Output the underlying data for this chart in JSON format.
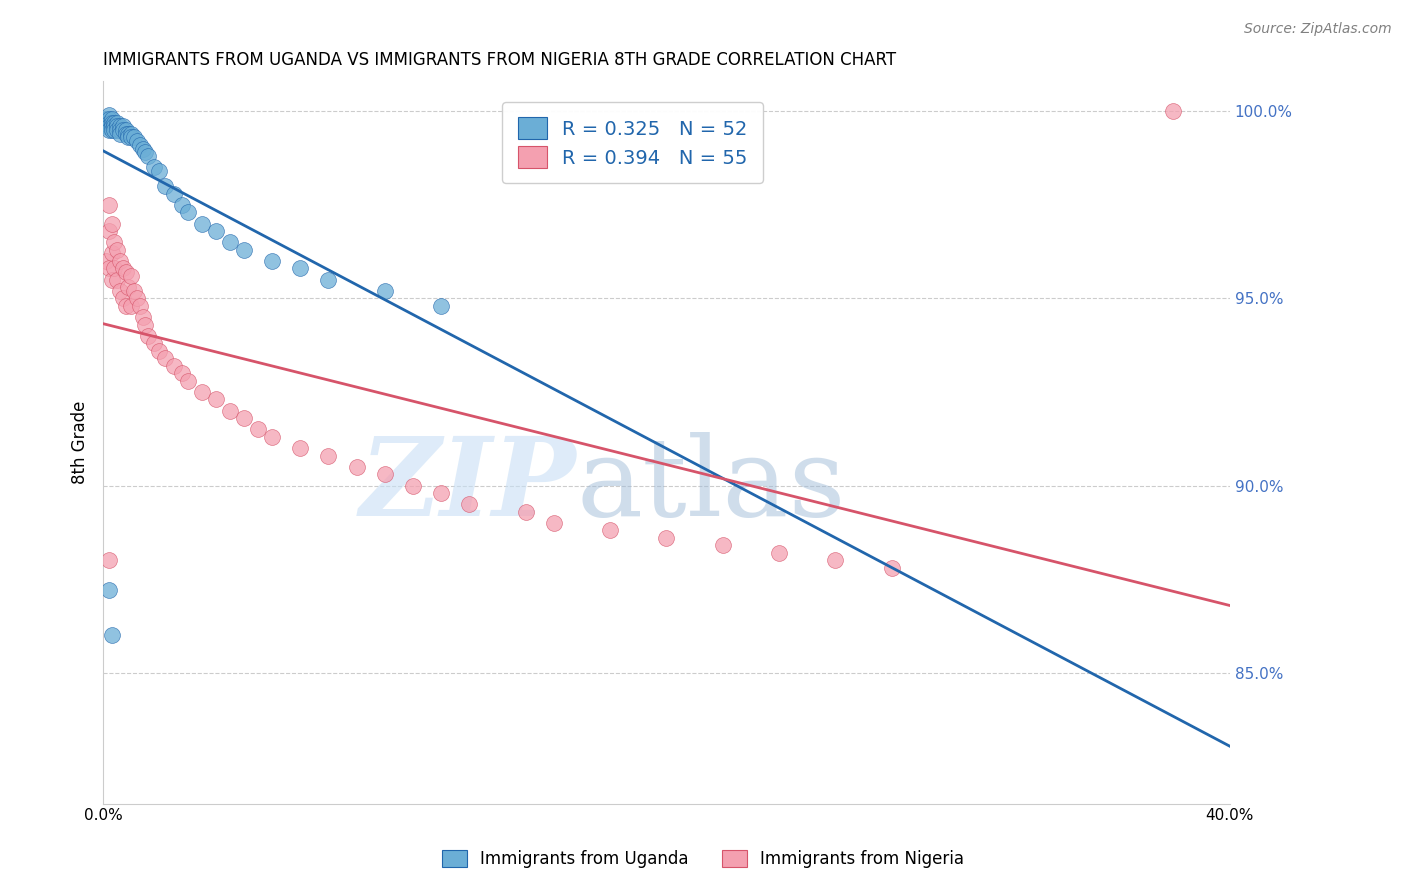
{
  "title": "IMMIGRANTS FROM UGANDA VS IMMIGRANTS FROM NIGERIA 8TH GRADE CORRELATION CHART",
  "source": "Source: ZipAtlas.com",
  "ylabel": "8th Grade",
  "legend_label1": "Immigrants from Uganda",
  "legend_label2": "Immigrants from Nigeria",
  "R1": 0.325,
  "N1": 52,
  "R2": 0.394,
  "N2": 55,
  "color_uganda": "#6baed6",
  "color_nigeria": "#f4a0b0",
  "color_line_uganda": "#2166ac",
  "color_line_nigeria": "#d6546a",
  "xlim": [
    0.0,
    0.4
  ],
  "ylim": [
    0.815,
    1.008
  ],
  "xticks": [
    0.0,
    0.05,
    0.1,
    0.15,
    0.2,
    0.25,
    0.3,
    0.35,
    0.4
  ],
  "ytick_right": [
    0.85,
    0.9,
    0.95,
    1.0
  ],
  "ytick_right_labels": [
    "85.0%",
    "90.0%",
    "95.0%",
    "100.0%"
  ],
  "watermark_zip": "ZIP",
  "watermark_atlas": "atlas",
  "background_color": "#ffffff",
  "uganda_x": [
    0.001,
    0.001,
    0.001,
    0.002,
    0.002,
    0.002,
    0.002,
    0.002,
    0.003,
    0.003,
    0.003,
    0.003,
    0.004,
    0.004,
    0.004,
    0.005,
    0.005,
    0.005,
    0.006,
    0.006,
    0.006,
    0.007,
    0.007,
    0.008,
    0.008,
    0.009,
    0.009,
    0.01,
    0.01,
    0.011,
    0.012,
    0.013,
    0.014,
    0.015,
    0.016,
    0.018,
    0.02,
    0.022,
    0.025,
    0.028,
    0.03,
    0.035,
    0.04,
    0.045,
    0.05,
    0.06,
    0.07,
    0.08,
    0.1,
    0.12,
    0.002,
    0.003
  ],
  "uganda_y": [
    0.998,
    0.997,
    0.996,
    0.999,
    0.998,
    0.997,
    0.996,
    0.995,
    0.998,
    0.997,
    0.996,
    0.995,
    0.997,
    0.996,
    0.995,
    0.997,
    0.996,
    0.995,
    0.996,
    0.995,
    0.994,
    0.996,
    0.995,
    0.995,
    0.994,
    0.994,
    0.993,
    0.994,
    0.993,
    0.993,
    0.992,
    0.991,
    0.99,
    0.989,
    0.988,
    0.985,
    0.984,
    0.98,
    0.978,
    0.975,
    0.973,
    0.97,
    0.968,
    0.965,
    0.963,
    0.96,
    0.958,
    0.955,
    0.952,
    0.948,
    0.872,
    0.86
  ],
  "nigeria_x": [
    0.001,
    0.002,
    0.002,
    0.002,
    0.003,
    0.003,
    0.003,
    0.004,
    0.004,
    0.005,
    0.005,
    0.006,
    0.006,
    0.007,
    0.007,
    0.008,
    0.008,
    0.009,
    0.01,
    0.01,
    0.011,
    0.012,
    0.013,
    0.014,
    0.015,
    0.016,
    0.018,
    0.02,
    0.022,
    0.025,
    0.028,
    0.03,
    0.035,
    0.04,
    0.045,
    0.05,
    0.055,
    0.06,
    0.07,
    0.08,
    0.09,
    0.1,
    0.11,
    0.12,
    0.13,
    0.15,
    0.16,
    0.18,
    0.2,
    0.22,
    0.24,
    0.26,
    0.28,
    0.38,
    0.002
  ],
  "nigeria_y": [
    0.96,
    0.975,
    0.968,
    0.958,
    0.97,
    0.962,
    0.955,
    0.965,
    0.958,
    0.963,
    0.955,
    0.96,
    0.952,
    0.958,
    0.95,
    0.957,
    0.948,
    0.953,
    0.956,
    0.948,
    0.952,
    0.95,
    0.948,
    0.945,
    0.943,
    0.94,
    0.938,
    0.936,
    0.934,
    0.932,
    0.93,
    0.928,
    0.925,
    0.923,
    0.92,
    0.918,
    0.915,
    0.913,
    0.91,
    0.908,
    0.905,
    0.903,
    0.9,
    0.898,
    0.895,
    0.893,
    0.89,
    0.888,
    0.886,
    0.884,
    0.882,
    0.88,
    0.878,
    1.0,
    0.88
  ]
}
